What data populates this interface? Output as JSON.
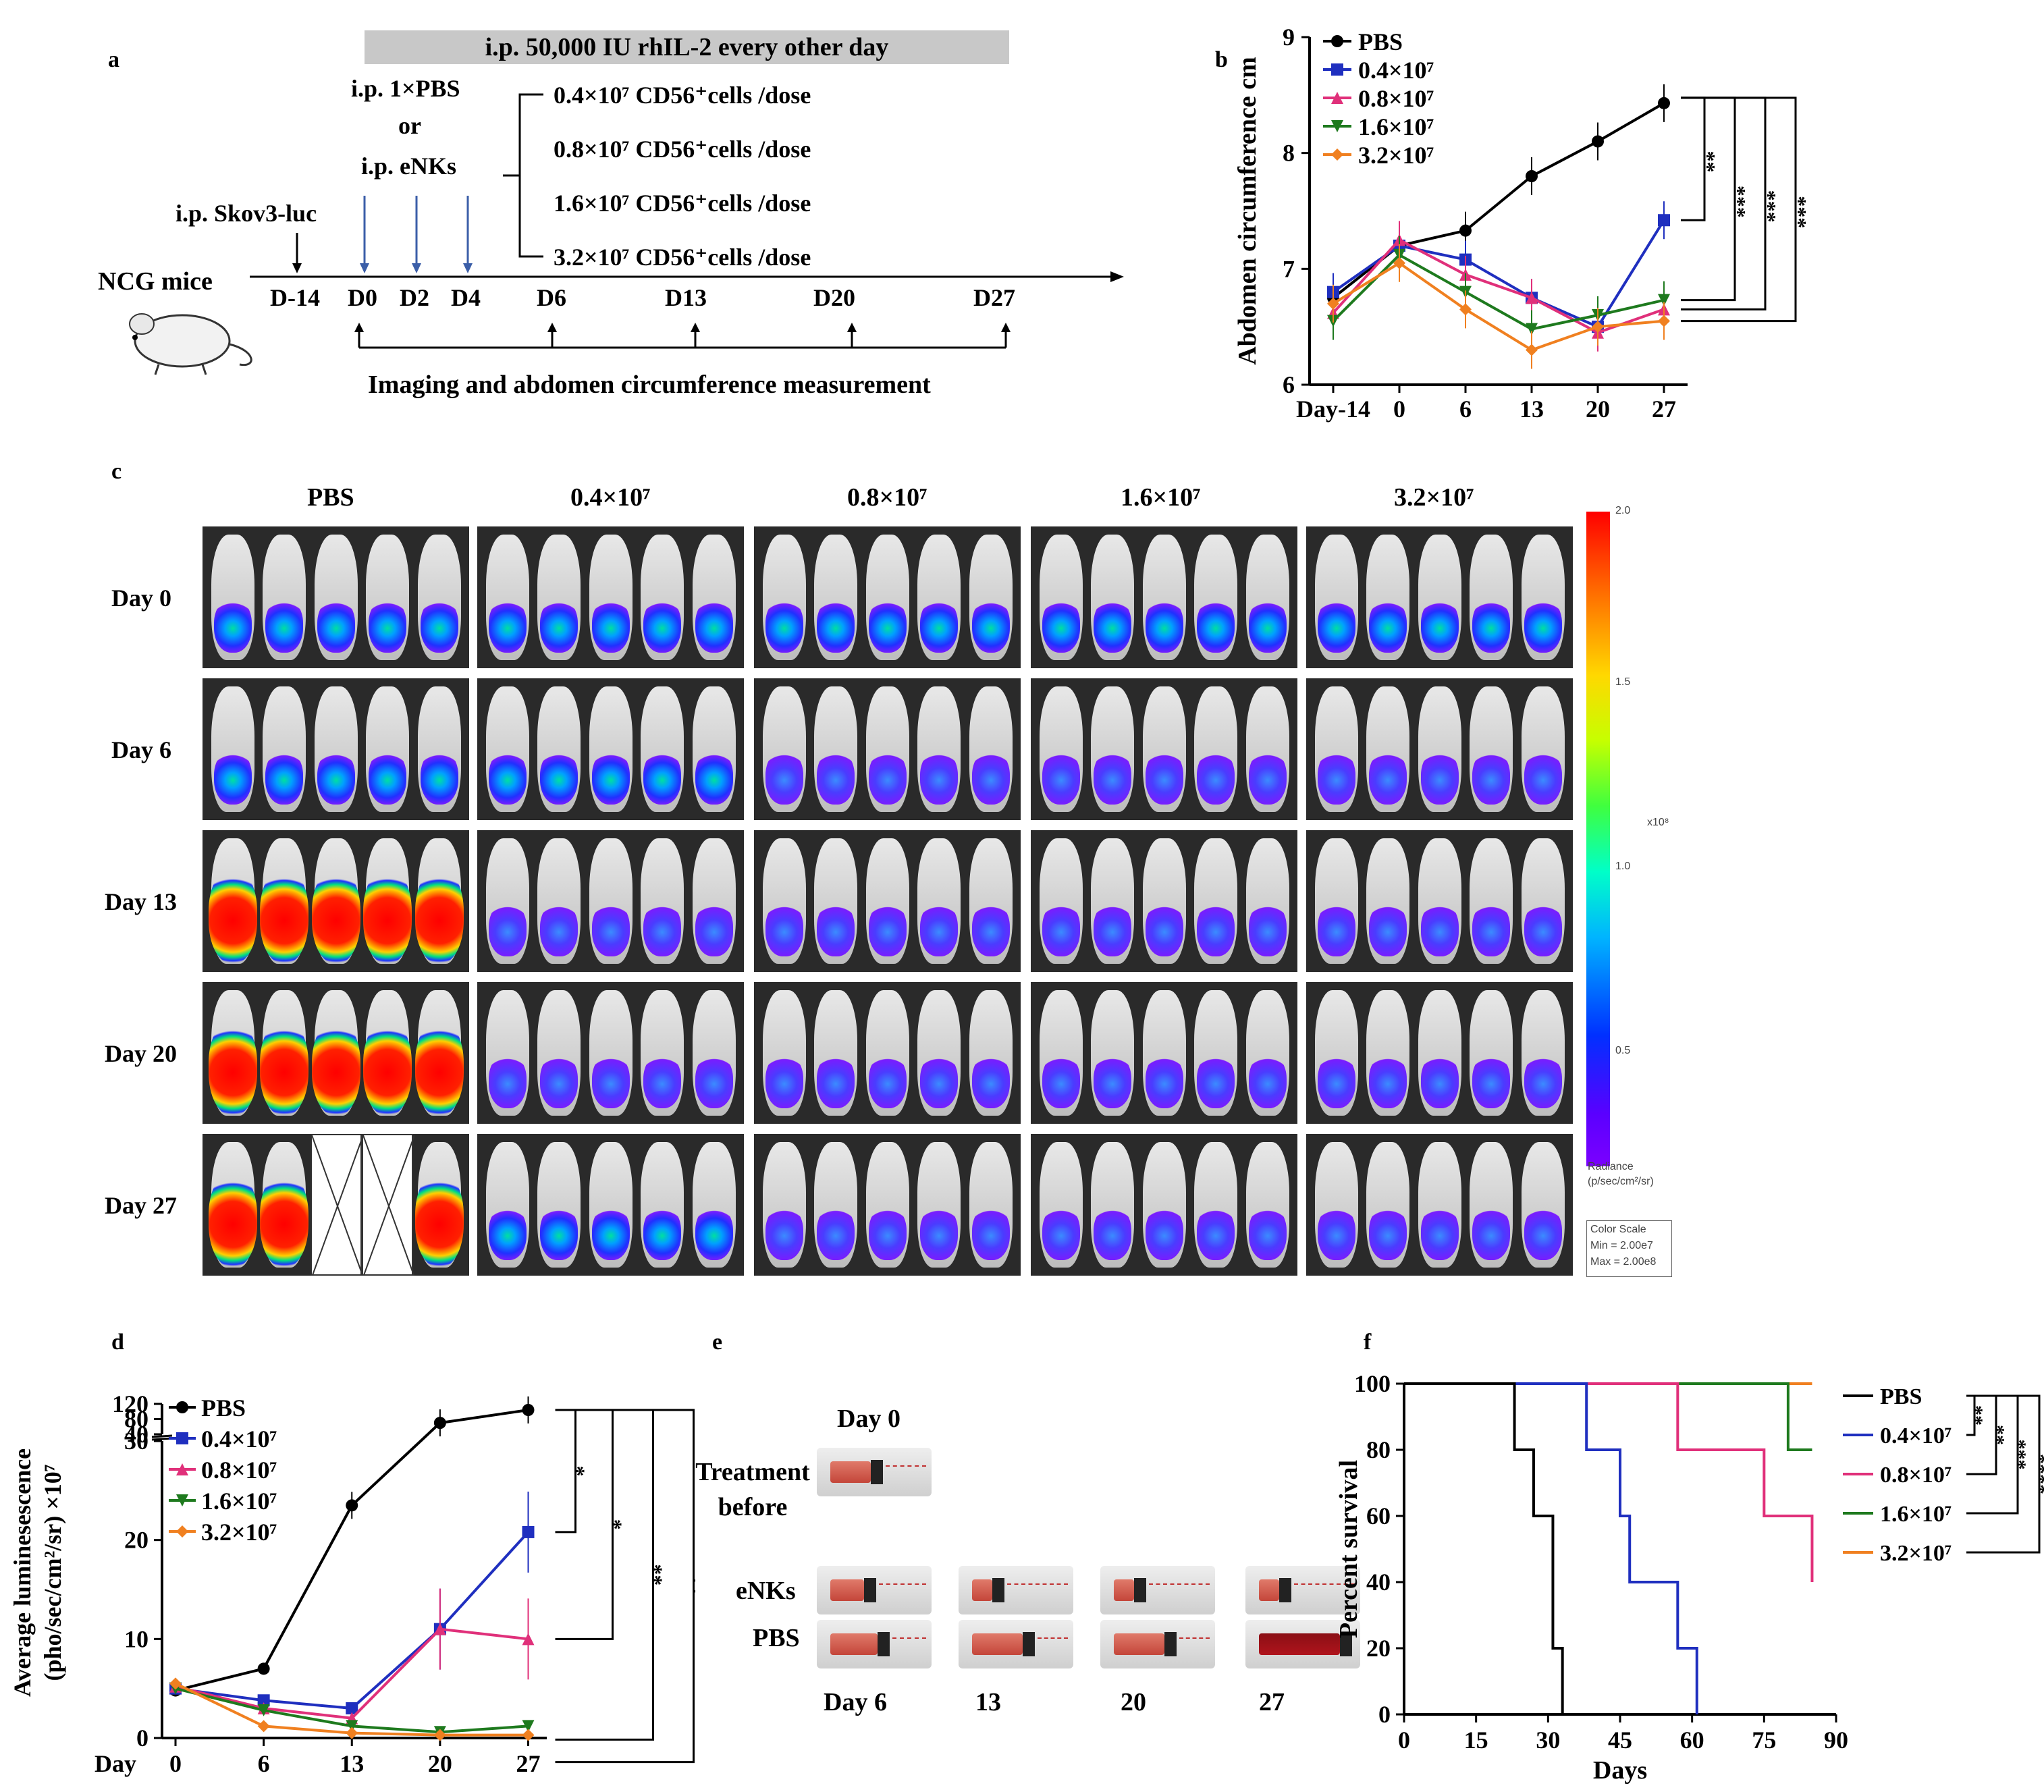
{
  "panel_labels": {
    "a": "a",
    "b": "b",
    "c": "c",
    "d": "d",
    "e": "e",
    "f": "f"
  },
  "panel_a": {
    "banner": "i.p. 50,000 IU rhIL-2 every other day",
    "ip_pbs": "i.p. 1×PBS",
    "or": "or",
    "ip_enks": "i.p. eNKs",
    "ip_skov": "i.p. Skov3-luc",
    "mice": "NCG mice",
    "dose_suffix": " CD56⁺cells /dose",
    "doses": [
      "0.4×10⁷",
      "0.8×10⁷",
      "1.6×10⁷",
      "3.2×10⁷"
    ],
    "days": [
      "D-14",
      "D0",
      "D2",
      "D4",
      "D6",
      "D13",
      "D20",
      "D27"
    ],
    "bottom_caption": "Imaging and abdomen circumference measurement"
  },
  "groups": [
    "PBS",
    "0.4×10⁷",
    "0.8×10⁷",
    "1.6×10⁷",
    "3.2×10⁷"
  ],
  "colors": {
    "PBS": "#000000",
    "g04": "#1f2fbf",
    "g08": "#e0307a",
    "g16": "#1e7a1e",
    "g32": "#f08020"
  },
  "panel_c": {
    "rows": [
      "Day 0",
      "Day 6",
      "Day 13",
      "Day 20",
      "Day 27"
    ],
    "colorbar_ticks": [
      "2.0",
      "1.5",
      "1.0",
      "0.5"
    ],
    "colorbar_unit": "x10⁸",
    "radiance_label": "Radiance",
    "radiance_units": "(p/sec/cm²/sr)",
    "color_scale": "Color Scale",
    "min": "Min = 2.00e7",
    "max": "Max = 2.00e8"
  },
  "panel_e": {
    "title": "Day 0",
    "treatment_before": "Treatment before",
    "enks": "eNKs",
    "pbs": "PBS",
    "days": [
      "Day 6",
      "13",
      "20",
      "27"
    ]
  },
  "chart_data": [
    {
      "id": "b",
      "type": "line",
      "ylabel": "Abdomen circumference cm",
      "x": [
        "Day-14",
        "0",
        "6",
        "13",
        "20",
        "27"
      ],
      "ylim": [
        6,
        9
      ],
      "yticks": [
        "6",
        "7",
        "8",
        "9"
      ],
      "series": [
        {
          "name": "PBS",
          "values": [
            6.75,
            7.2,
            7.33,
            7.8,
            8.1,
            8.43
          ]
        },
        {
          "name": "0.4×10⁷",
          "values": [
            6.8,
            7.2,
            7.08,
            6.75,
            6.5,
            7.42
          ]
        },
        {
          "name": "0.8×10⁷",
          "values": [
            6.62,
            7.25,
            6.95,
            6.75,
            6.45,
            6.65
          ]
        },
        {
          "name": "1.6×10⁷",
          "values": [
            6.55,
            7.12,
            6.8,
            6.48,
            6.6,
            6.73
          ]
        },
        {
          "name": "3.2×10⁷",
          "values": [
            6.7,
            7.05,
            6.65,
            6.3,
            6.5,
            6.55
          ]
        }
      ],
      "significance": [
        "**",
        "***",
        "***",
        "***"
      ]
    },
    {
      "id": "d",
      "type": "line",
      "ylabel": "Average luminesescence (pho/sec/cm²/sr) ×10⁷",
      "xlabel_prefix": "Day",
      "x": [
        "0",
        "6",
        "13",
        "20",
        "27"
      ],
      "yticks_low": [
        "0",
        "10",
        "20",
        "30"
      ],
      "yticks_high": [
        "40",
        "80",
        "120"
      ],
      "series": [
        {
          "name": "PBS",
          "values": [
            4.8,
            7,
            23.5,
            70,
            104
          ]
        },
        {
          "name": "0.4×10⁷",
          "values": [
            5,
            3.8,
            3,
            11,
            20.8
          ]
        },
        {
          "name": "0.8×10⁷",
          "values": [
            5.2,
            3,
            2,
            11,
            10
          ]
        },
        {
          "name": "1.6×10⁷",
          "values": [
            5,
            2.8,
            1.2,
            0.6,
            1.2
          ]
        },
        {
          "name": "3.2×10⁷",
          "values": [
            5.5,
            1.2,
            0.5,
            0.3,
            0.3
          ]
        }
      ],
      "significance": [
        "*",
        "*",
        "**",
        "**"
      ]
    },
    {
      "id": "f",
      "type": "line",
      "ylabel": "Percent survival",
      "xlabel": "Days",
      "xticks": [
        "0",
        "15",
        "30",
        "45",
        "60",
        "75",
        "90"
      ],
      "yticks": [
        "0",
        "20",
        "40",
        "60",
        "80",
        "100"
      ],
      "xlim": [
        0,
        90
      ],
      "ylim": [
        0,
        100
      ],
      "series": [
        {
          "name": "PBS",
          "steps": [
            [
              0,
              100
            ],
            [
              23,
              100
            ],
            [
              23,
              80
            ],
            [
              27,
              80
            ],
            [
              27,
              60
            ],
            [
              31,
              60
            ],
            [
              31,
              20
            ],
            [
              33,
              20
            ],
            [
              33,
              0
            ]
          ]
        },
        {
          "name": "0.4×10⁷",
          "steps": [
            [
              0,
              100
            ],
            [
              38,
              100
            ],
            [
              38,
              80
            ],
            [
              45,
              80
            ],
            [
              45,
              60
            ],
            [
              47,
              60
            ],
            [
              47,
              40
            ],
            [
              57,
              40
            ],
            [
              57,
              20
            ],
            [
              61,
              20
            ],
            [
              61,
              0
            ]
          ]
        },
        {
          "name": "0.8×10⁷",
          "steps": [
            [
              0,
              100
            ],
            [
              57,
              100
            ],
            [
              57,
              80
            ],
            [
              75,
              80
            ],
            [
              75,
              60
            ],
            [
              85,
              60
            ],
            [
              85,
              40
            ]
          ]
        },
        {
          "name": "1.6×10⁷",
          "steps": [
            [
              0,
              100
            ],
            [
              80,
              100
            ],
            [
              80,
              80
            ],
            [
              85,
              80
            ]
          ]
        },
        {
          "name": "3.2×10⁷",
          "steps": [
            [
              0,
              100
            ],
            [
              85,
              100
            ]
          ]
        }
      ],
      "significance": [
        "**",
        "**",
        "***",
        "****"
      ]
    }
  ]
}
